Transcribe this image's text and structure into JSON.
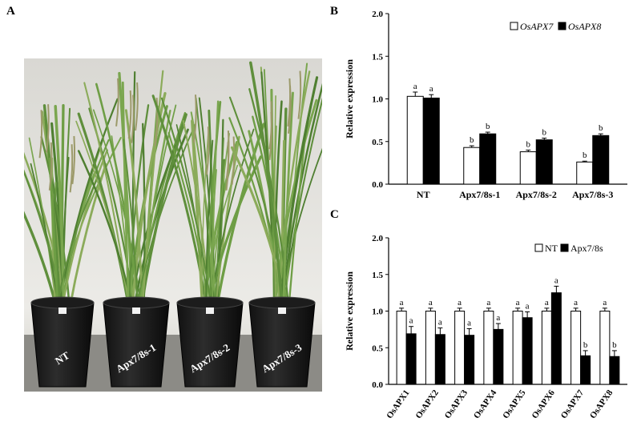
{
  "panels": {
    "a": {
      "letter": "A",
      "pot_labels": [
        "NT",
        "Apx7/8s-1",
        "Apx7/8s-2",
        "Apx7/8s-3"
      ]
    },
    "b": {
      "letter": "B"
    },
    "c": {
      "letter": "C"
    }
  },
  "colors": {
    "white_bar": "#ffffff",
    "black_bar": "#000000",
    "sky": "#e8e8e6",
    "leaf": "#5d8f3a"
  },
  "chart_data": [
    {
      "type": "bar",
      "panel": "B",
      "categories": [
        "NT",
        "Apx7/8s-1",
        "Apx7/8s-2",
        "Apx7/8s-3"
      ],
      "series": [
        {
          "name": "OsAPX7",
          "italic": true,
          "fill": "white",
          "values": [
            1.03,
            0.43,
            0.38,
            0.26
          ],
          "errors": [
            0.05,
            0.02,
            0.02,
            0.01
          ],
          "letters": [
            "a",
            "b",
            "b",
            "b"
          ]
        },
        {
          "name": "OsAPX8",
          "italic": true,
          "fill": "black",
          "values": [
            1.01,
            0.59,
            0.52,
            0.57
          ],
          "errors": [
            0.04,
            0.02,
            0.02,
            0.02
          ],
          "letters": [
            "a",
            "b",
            "b",
            "b"
          ]
        }
      ],
      "ylabel": "Relative expression",
      "ylim": [
        0,
        2.0
      ],
      "yticks": [
        "0.0",
        "0.5",
        "1.0",
        "1.5",
        "2.0"
      ],
      "legend": "top-right",
      "grid": false
    },
    {
      "type": "bar",
      "panel": "C",
      "categories": [
        "OsAPX1",
        "OsAPX2",
        "OsAPX3",
        "OsAPX4",
        "OsAPX5",
        "OsAPX6",
        "OsAPX7",
        "OsAPX8"
      ],
      "series": [
        {
          "name": "NT",
          "italic": false,
          "fill": "white",
          "values": [
            1.0,
            1.0,
            1.0,
            1.0,
            1.0,
            1.0,
            1.0,
            1.0
          ],
          "errors": [
            0.04,
            0.04,
            0.04,
            0.04,
            0.04,
            0.04,
            0.04,
            0.04
          ],
          "letters": [
            "a",
            "a",
            "a",
            "a",
            "a",
            "a",
            "a",
            "a"
          ]
        },
        {
          "name": "Apx7/8s",
          "italic": false,
          "fill": "black",
          "values": [
            0.69,
            0.68,
            0.67,
            0.75,
            0.91,
            1.25,
            0.39,
            0.38
          ],
          "errors": [
            0.1,
            0.09,
            0.09,
            0.08,
            0.08,
            0.09,
            0.07,
            0.08
          ],
          "letters": [
            "a",
            "a",
            "a",
            "a",
            "a",
            "a",
            "b",
            "b"
          ]
        }
      ],
      "ylabel": "Relative expression",
      "ylim": [
        0,
        2.0
      ],
      "yticks": [
        "0.0",
        "0.5",
        "1.0",
        "1.5",
        "2.0"
      ],
      "legend": "top-right",
      "grid": false
    }
  ]
}
